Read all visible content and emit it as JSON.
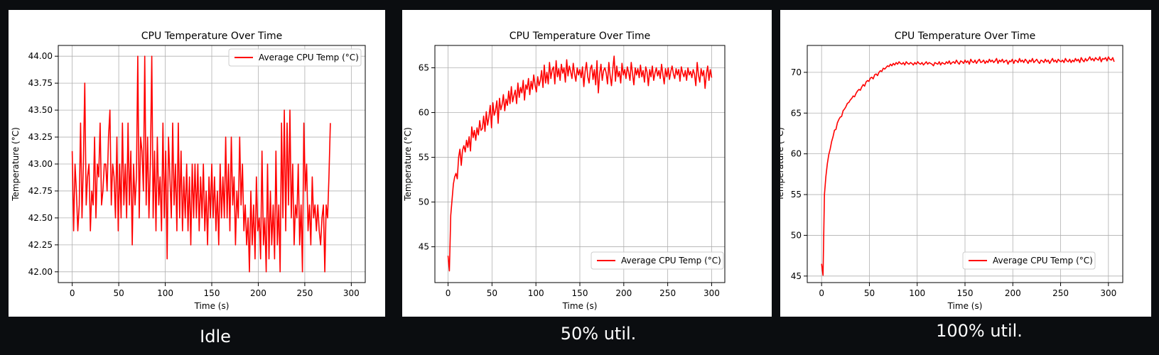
{
  "colors": {
    "line": "#ff0000",
    "background": "#0b0d10",
    "panel": "#ffffff",
    "grid": "#b0b0b0"
  },
  "captions": [
    "Idle",
    "50% util.",
    "100% util."
  ],
  "chart_data": [
    {
      "type": "line",
      "title": "CPU Temperature Over Time",
      "xlabel": "Time (s)",
      "ylabel": "Temperature (°C)",
      "xlim": [
        -15,
        315
      ],
      "ylim": [
        41.9,
        44.1
      ],
      "xticks": [
        0,
        50,
        100,
        150,
        200,
        250,
        300
      ],
      "yticks": [
        42.0,
        42.25,
        42.5,
        42.75,
        43.0,
        43.25,
        43.5,
        43.75,
        44.0
      ],
      "ytick_labels": [
        "42.00",
        "42.25",
        "42.50",
        "42.75",
        "43.00",
        "43.25",
        "43.50",
        "43.75",
        "44.00"
      ],
      "grid": true,
      "legend": "upper right",
      "series": [
        {
          "name": "Average CPU Temp (°C)",
          "x_start": 0,
          "x_step": 1.5,
          "y": [
            43.12,
            42.38,
            43.0,
            42.75,
            42.38,
            42.62,
            43.38,
            42.5,
            43.0,
            43.75,
            42.62,
            42.88,
            43.0,
            42.38,
            42.75,
            42.62,
            43.25,
            42.5,
            43.0,
            42.88,
            43.38,
            42.62,
            42.75,
            43.0,
            43.0,
            42.75,
            43.25,
            43.5,
            42.62,
            43.0,
            42.88,
            42.5,
            43.25,
            42.38,
            43.0,
            42.5,
            43.38,
            42.62,
            43.0,
            42.5,
            43.38,
            42.62,
            43.12,
            42.25,
            43.0,
            42.62,
            42.88,
            44.0,
            42.5,
            43.25,
            43.12,
            42.75,
            44.0,
            42.62,
            43.25,
            42.5,
            43.0,
            44.0,
            42.5,
            43.12,
            42.38,
            43.25,
            42.62,
            42.88,
            42.38,
            43.38,
            42.5,
            43.12,
            42.12,
            43.25,
            42.88,
            42.5,
            43.38,
            42.62,
            43.0,
            42.38,
            43.38,
            42.5,
            43.12,
            42.38,
            42.88,
            42.5,
            43.0,
            42.38,
            42.88,
            42.25,
            43.0,
            42.5,
            43.0,
            42.5,
            43.0,
            42.38,
            42.88,
            42.5,
            43.0,
            42.38,
            42.75,
            42.25,
            42.88,
            42.5,
            43.0,
            42.5,
            42.88,
            42.38,
            42.75,
            42.25,
            43.0,
            42.5,
            42.88,
            42.5,
            43.25,
            42.5,
            43.0,
            42.38,
            43.25,
            42.62,
            42.88,
            42.25,
            42.75,
            42.5,
            43.25,
            42.62,
            43.0,
            42.38,
            42.62,
            42.25,
            42.5,
            42.0,
            42.75,
            42.25,
            42.62,
            42.12,
            42.88,
            42.38,
            42.5,
            42.12,
            43.12,
            42.25,
            42.5,
            42.0,
            43.0,
            42.12,
            42.75,
            42.25,
            42.62,
            42.12,
            43.12,
            42.25,
            42.62,
            42.0,
            43.38,
            42.5,
            43.5,
            42.38,
            43.38,
            42.62,
            43.5,
            42.5,
            43.0,
            42.25,
            42.62,
            42.5,
            43.0,
            42.25,
            42.62,
            42.0,
            43.38,
            42.75,
            43.0,
            42.38,
            42.62,
            42.25,
            42.88,
            42.5,
            42.62,
            42.38,
            42.62,
            42.38,
            42.25,
            42.5,
            42.62,
            42.0,
            42.62,
            42.5,
            42.88,
            43.38
          ]
        }
      ]
    },
    {
      "type": "line",
      "title": "CPU Temperature Over Time",
      "xlabel": "Time (s)",
      "ylabel": "Temperature (°C)",
      "xlim": [
        -15,
        315
      ],
      "ylim": [
        41.0,
        67.5
      ],
      "xticks": [
        0,
        50,
        100,
        150,
        200,
        250,
        300
      ],
      "yticks": [
        45,
        50,
        55,
        60,
        65
      ],
      "ytick_labels": [
        "45",
        "50",
        "55",
        "60",
        "65"
      ],
      "grid": true,
      "legend": "lower right",
      "series": [
        {
          "name": "Average CPU Temp (°C)",
          "x_start": 0,
          "x_step": 1.5,
          "y": [
            44.0,
            42.3,
            48.5,
            50.2,
            52.0,
            52.8,
            53.2,
            52.6,
            55.0,
            55.9,
            54.1,
            55.8,
            56.3,
            55.6,
            56.9,
            56.1,
            57.3,
            55.7,
            58.4,
            57.2,
            58.0,
            56.9,
            58.3,
            57.5,
            59.1,
            58.0,
            58.2,
            59.6,
            57.9,
            60.1,
            58.6,
            59.5,
            60.8,
            58.3,
            61.1,
            59.7,
            60.2,
            61.3,
            58.8,
            61.6,
            60.3,
            60.9,
            62.0,
            60.2,
            61.5,
            60.8,
            62.4,
            61.0,
            62.9,
            61.2,
            61.9,
            62.5,
            61.0,
            63.3,
            61.7,
            62.8,
            62.2,
            63.6,
            61.4,
            63.1,
            62.6,
            63.8,
            62.0,
            63.5,
            62.6,
            64.2,
            63.1,
            62.3,
            64.0,
            63.0,
            63.6,
            64.7,
            62.8,
            65.3,
            63.3,
            64.5,
            63.2,
            65.6,
            63.8,
            64.8,
            65.1,
            63.2,
            65.8,
            64.0,
            64.9,
            63.6,
            65.4,
            64.4,
            65.0,
            63.4,
            65.9,
            64.1,
            65.2,
            64.6,
            63.8,
            65.5,
            64.3,
            63.5,
            65.0,
            64.2,
            64.8,
            63.9,
            65.1,
            62.9,
            64.6,
            65.6,
            64.0,
            63.3,
            64.9,
            65.3,
            63.7,
            64.8,
            63.1,
            65.8,
            62.2,
            64.3,
            65.4,
            63.6,
            64.7,
            65.0,
            64.4,
            63.2,
            65.6,
            64.1,
            63.0,
            64.9,
            66.3,
            63.5,
            65.2,
            64.0,
            64.6,
            63.3,
            65.5,
            64.2,
            64.8,
            63.8,
            65.1,
            64.5,
            63.6,
            65.6,
            64.3,
            63.1,
            65.0,
            64.2,
            64.9,
            63.9,
            65.3,
            64.0,
            64.7,
            63.4,
            65.1,
            64.5,
            63.0,
            64.8,
            64.0,
            65.2,
            63.6,
            64.4,
            65.0,
            64.1,
            64.7,
            63.8,
            65.4,
            64.3,
            63.2,
            64.9,
            64.0,
            65.0,
            63.7,
            64.6,
            65.2,
            64.3,
            63.8,
            64.9,
            64.2,
            64.8,
            63.5,
            65.1,
            64.4,
            64.0,
            64.7,
            63.6,
            65.0,
            64.2,
            64.6,
            63.9,
            64.8,
            64.3,
            63.0,
            65.6,
            64.2,
            63.4,
            64.9,
            64.1,
            64.7,
            62.7,
            64.3,
            65.2,
            63.6,
            64.8,
            63.9
          ]
        }
      ]
    },
    {
      "type": "line",
      "title": "CPU Temperature Over Time",
      "xlabel": "Time (s)",
      "ylabel": "Temperature (°C)",
      "xlim": [
        -15,
        315
      ],
      "ylim": [
        44.2,
        73.3
      ],
      "xticks": [
        0,
        50,
        100,
        150,
        200,
        250,
        300
      ],
      "yticks": [
        45,
        50,
        55,
        60,
        65,
        70
      ],
      "ytick_labels": [
        "45",
        "50",
        "55",
        "60",
        "65",
        "70"
      ],
      "grid": true,
      "legend": "lower right",
      "series": [
        {
          "name": "Average CPU Temp (°C)",
          "x_start": 0,
          "x_step": 1.5,
          "y": [
            46.5,
            45.1,
            55.0,
            57.2,
            58.8,
            59.9,
            60.6,
            61.5,
            62.1,
            62.9,
            63.0,
            63.8,
            64.2,
            64.5,
            64.6,
            65.3,
            65.5,
            65.8,
            66.2,
            66.3,
            66.6,
            66.8,
            67.1,
            67.0,
            67.4,
            67.7,
            67.9,
            67.8,
            68.2,
            68.5,
            68.3,
            68.8,
            69.0,
            68.9,
            69.3,
            69.4,
            69.2,
            69.7,
            69.8,
            69.6,
            70.0,
            70.2,
            70.1,
            70.5,
            70.4,
            70.6,
            70.8,
            70.7,
            71.0,
            70.8,
            71.1,
            70.9,
            71.2,
            71.0,
            71.3,
            71.1,
            71.0,
            71.2,
            70.9,
            71.3,
            71.1,
            71.0,
            71.2,
            71.1,
            70.9,
            71.2,
            71.0,
            71.3,
            71.1,
            71.0,
            71.2,
            70.9,
            71.1,
            71.3,
            71.0,
            71.2,
            71.1,
            71.0,
            70.8,
            71.2,
            71.1,
            71.0,
            71.3,
            70.9,
            71.2,
            71.1,
            71.0,
            71.3,
            71.1,
            71.4,
            71.0,
            71.2,
            71.3,
            71.1,
            71.5,
            71.2,
            71.0,
            71.4,
            71.3,
            71.1,
            71.5,
            71.2,
            71.4,
            71.0,
            71.6,
            71.3,
            71.2,
            71.5,
            71.1,
            71.4,
            71.6,
            71.2,
            71.3,
            71.5,
            71.1,
            71.4,
            71.2,
            71.6,
            71.3,
            71.5,
            71.2,
            71.4,
            71.7,
            71.1,
            71.5,
            71.3,
            71.6,
            71.2,
            71.4,
            71.5,
            71.0,
            71.4,
            71.3,
            71.6,
            71.1,
            71.5,
            71.4,
            71.2,
            71.7,
            71.3,
            71.5,
            71.2,
            71.6,
            71.4,
            71.1,
            71.5,
            71.3,
            71.7,
            71.2,
            71.4,
            71.6,
            71.3,
            71.1,
            71.5,
            71.4,
            71.2,
            71.6,
            71.3,
            71.5,
            71.1,
            71.4,
            71.7,
            71.3,
            71.5,
            71.2,
            71.6,
            71.4,
            71.3,
            71.5,
            71.2,
            71.7,
            71.4,
            71.3,
            71.6,
            71.2,
            71.5,
            71.3,
            71.7,
            71.4,
            71.6,
            71.2,
            71.8,
            71.5,
            71.3,
            71.7,
            71.4,
            71.6,
            71.9,
            71.5,
            71.7,
            71.4,
            71.8,
            71.6,
            71.5,
            71.9,
            71.3,
            71.7,
            71.6,
            71.8,
            71.4,
            71.9,
            71.6,
            71.5,
            71.8,
            71.3
          ]
        }
      ]
    }
  ]
}
